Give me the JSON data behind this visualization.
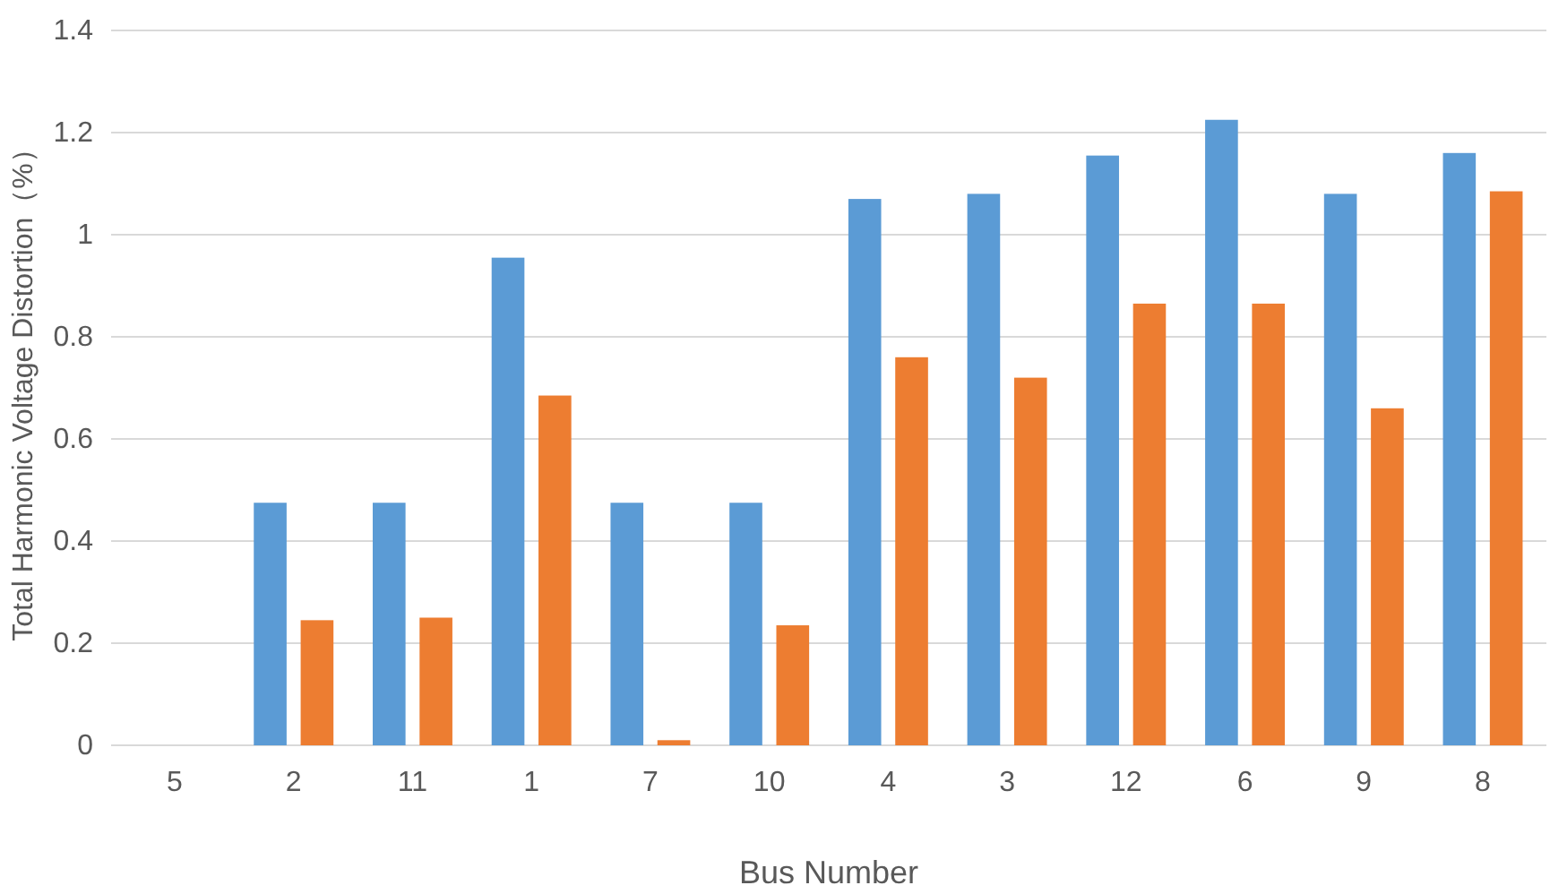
{
  "chart_data": {
    "type": "bar",
    "xlabel": "Bus Number",
    "ylabel": "Total Harmonic Voltage Distortion（%）",
    "categories": [
      "5",
      "2",
      "11",
      "1",
      "7",
      "10",
      "4",
      "3",
      "12",
      "6",
      "9",
      "8"
    ],
    "series": [
      {
        "color": "#5b9bd5",
        "values": [
          0,
          0.475,
          0.475,
          0.955,
          0.475,
          0.475,
          1.07,
          1.08,
          1.155,
          1.225,
          1.08,
          1.16
        ]
      },
      {
        "color": "#ed7d31",
        "values": [
          0,
          0.245,
          0.25,
          0.685,
          0.01,
          0.235,
          0.76,
          0.72,
          0.865,
          0.865,
          0.66,
          1.085
        ]
      }
    ],
    "ylim": [
      0,
      1.4
    ],
    "yticks": [
      0,
      0.2,
      0.4,
      0.6,
      0.8,
      1,
      1.2,
      1.4
    ],
    "grid": "y"
  }
}
